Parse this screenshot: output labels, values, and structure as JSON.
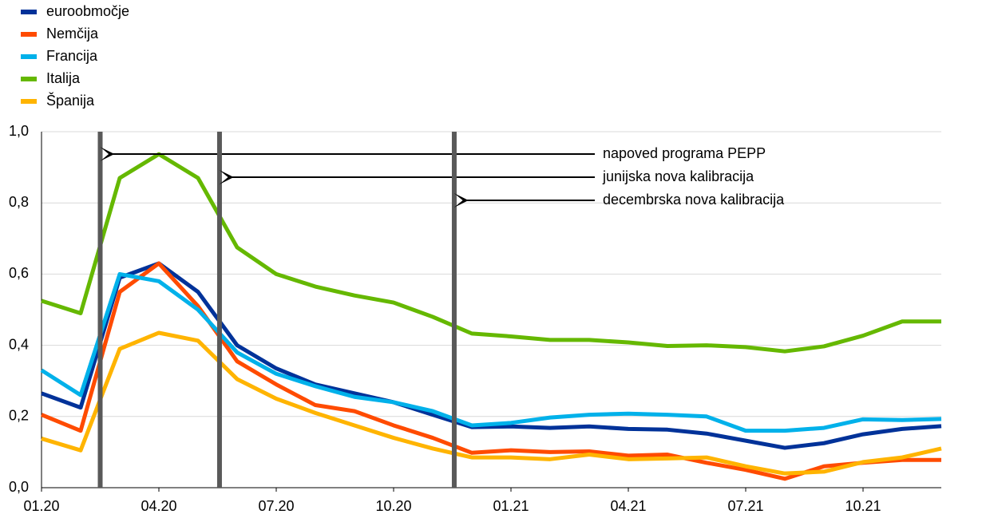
{
  "chart_data": {
    "type": "line",
    "categories": [
      "01.20",
      null,
      null,
      "04.20",
      null,
      null,
      "07.20",
      null,
      null,
      "10.20",
      null,
      null,
      "01.21",
      null,
      null,
      "04.21",
      null,
      null,
      "07.21",
      null,
      null,
      "10.21",
      null,
      null
    ],
    "series": [
      {
        "name": "euroobmočje",
        "color": "#003299",
        "values": [
          0.265,
          0.225,
          0.59,
          0.63,
          0.55,
          0.4,
          0.335,
          0.29,
          0.265,
          0.24,
          0.205,
          0.17,
          0.172,
          0.168,
          0.172,
          0.165,
          0.163,
          0.152,
          0.132,
          0.112,
          0.125,
          0.15,
          0.165,
          0.173
        ]
      },
      {
        "name": "Nemčija",
        "color": "#ff4b00",
        "values": [
          0.205,
          0.16,
          0.55,
          0.63,
          0.51,
          0.355,
          0.29,
          0.232,
          0.215,
          0.175,
          0.14,
          0.098,
          0.105,
          0.1,
          0.102,
          0.09,
          0.093,
          0.07,
          0.05,
          0.025,
          0.06,
          0.07,
          0.078,
          0.078
        ]
      },
      {
        "name": "Francija",
        "color": "#00b1ea",
        "values": [
          0.33,
          0.26,
          0.6,
          0.58,
          0.5,
          0.38,
          0.32,
          0.285,
          0.255,
          0.24,
          0.215,
          0.175,
          0.182,
          0.197,
          0.205,
          0.208,
          0.205,
          0.2,
          0.16,
          0.16,
          0.168,
          0.192,
          0.19,
          0.193
        ]
      },
      {
        "name": "Italija",
        "color": "#65b800",
        "values": [
          0.525,
          0.49,
          0.87,
          0.937,
          0.87,
          0.675,
          0.6,
          0.565,
          0.54,
          0.52,
          0.48,
          0.433,
          0.425,
          0.415,
          0.415,
          0.408,
          0.398,
          0.4,
          0.395,
          0.383,
          0.397,
          0.427,
          0.467,
          0.467
        ]
      },
      {
        "name": "Španija",
        "color": "#ffb400",
        "values": [
          0.138,
          0.105,
          0.39,
          0.435,
          0.413,
          0.305,
          0.25,
          0.21,
          0.175,
          0.14,
          0.11,
          0.085,
          0.085,
          0.08,
          0.093,
          0.08,
          0.082,
          0.085,
          0.06,
          0.04,
          0.045,
          0.072,
          0.085,
          0.11
        ]
      }
    ],
    "events": [
      {
        "label": "napoved programa PEPP",
        "x": 1.5
      },
      {
        "label": "junijska nova kalibracija",
        "x": 4.55
      },
      {
        "label": "decembrska nova kalibracija",
        "x": 10.55
      }
    ],
    "ylim": [
      0,
      1
    ],
    "yticks": [
      {
        "value": 0,
        "label": "0,0"
      },
      {
        "value": 0.2,
        "label": "0,2"
      },
      {
        "value": 0.4,
        "label": "0,4"
      },
      {
        "value": 0.6,
        "label": "0,6"
      },
      {
        "value": 0.8,
        "label": "0,8"
      },
      {
        "value": 1,
        "label": "1,0"
      }
    ],
    "grid": true,
    "legend": "top-left"
  }
}
